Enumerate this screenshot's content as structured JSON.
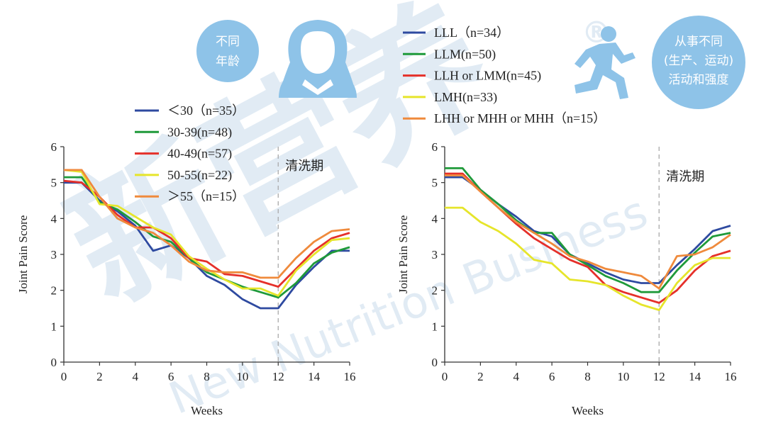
{
  "badges": {
    "age_line1": "不同",
    "age_line2": "年龄",
    "activity_line1": "从事不同",
    "activity_line2": "(生产、运动)",
    "activity_line3": "活动和强度"
  },
  "watermark": {
    "cn": "新营养",
    "en": "New Nutrition Business",
    "mark": "®"
  },
  "chart_data": [
    {
      "type": "line",
      "title": "",
      "xlabel": "Weeks",
      "ylabel": "Joint Pain Score",
      "xlim": [
        0,
        16
      ],
      "ylim": [
        0,
        6
      ],
      "xticks": [
        0,
        2,
        4,
        6,
        8,
        10,
        12,
        14,
        16
      ],
      "yticks": [
        0,
        1,
        2,
        3,
        4,
        5,
        6
      ],
      "annotation": {
        "text": "清洗期",
        "x": 12
      },
      "legend_position": "top-center",
      "x": [
        0,
        1,
        2,
        3,
        4,
        5,
        6,
        7,
        8,
        9,
        10,
        11,
        12,
        13,
        14,
        15,
        16
      ],
      "series": [
        {
          "name": "＜30（n=35）",
          "color": "#2e4aa0",
          "values": [
            5.0,
            5.0,
            4.5,
            4.2,
            3.8,
            3.1,
            3.25,
            2.9,
            2.4,
            2.15,
            1.75,
            1.5,
            1.5,
            2.15,
            2.65,
            3.1,
            3.1
          ]
        },
        {
          "name": "30-39(n=48)",
          "color": "#1f9a3a",
          "values": [
            5.15,
            5.15,
            4.45,
            4.25,
            3.9,
            3.5,
            3.35,
            2.9,
            2.5,
            2.3,
            2.1,
            1.95,
            1.8,
            2.2,
            2.75,
            3.05,
            3.2
          ]
        },
        {
          "name": "40-49(n=57)",
          "color": "#e5302a",
          "values": [
            5.05,
            5.0,
            4.6,
            4.1,
            3.75,
            3.75,
            3.45,
            2.9,
            2.8,
            2.45,
            2.4,
            2.25,
            2.1,
            2.6,
            3.1,
            3.45,
            3.6
          ]
        },
        {
          "name": "50-55(n=22)",
          "color": "#e6e52b",
          "values": [
            5.35,
            5.3,
            4.4,
            4.35,
            4.05,
            3.75,
            3.55,
            2.95,
            2.6,
            2.3,
            2.05,
            2.05,
            1.85,
            2.55,
            3.0,
            3.4,
            3.45
          ]
        },
        {
          "name": "＞55（n=15）",
          "color": "#ef8a3c",
          "values": [
            5.35,
            5.35,
            4.6,
            4.0,
            3.75,
            3.6,
            3.25,
            2.8,
            2.55,
            2.5,
            2.5,
            2.35,
            2.35,
            2.9,
            3.35,
            3.65,
            3.7
          ]
        }
      ]
    },
    {
      "type": "line",
      "title": "",
      "xlabel": "Weeks",
      "ylabel": "Joint Pain Score",
      "xlim": [
        0,
        16
      ],
      "ylim": [
        0,
        6
      ],
      "xticks": [
        0,
        2,
        4,
        6,
        8,
        10,
        12,
        14,
        16
      ],
      "yticks": [
        0,
        1,
        2,
        3,
        4,
        5,
        6
      ],
      "annotation": {
        "text": "清洗期",
        "x": 12
      },
      "legend_position": "top-right",
      "x": [
        0,
        1,
        2,
        3,
        4,
        5,
        6,
        7,
        8,
        9,
        10,
        11,
        12,
        13,
        14,
        15,
        16
      ],
      "series": [
        {
          "name": "LLL（n=34）",
          "color": "#2e4aa0",
          "values": [
            5.15,
            5.15,
            4.8,
            4.4,
            4.05,
            3.65,
            3.5,
            3.0,
            2.75,
            2.5,
            2.3,
            2.2,
            2.2,
            2.7,
            3.15,
            3.65,
            3.8
          ]
        },
        {
          "name": "LLM(n=50)",
          "color": "#1f9a3a",
          "values": [
            5.4,
            5.4,
            4.8,
            4.4,
            3.95,
            3.6,
            3.6,
            3.0,
            2.7,
            2.4,
            2.2,
            1.95,
            1.95,
            2.55,
            3.05,
            3.5,
            3.6
          ]
        },
        {
          "name": "LLH or LMM(n=45)",
          "color": "#e5302a",
          "values": [
            5.25,
            5.25,
            4.75,
            4.3,
            3.85,
            3.45,
            3.15,
            2.85,
            2.65,
            2.15,
            1.95,
            1.8,
            1.65,
            2.0,
            2.55,
            2.95,
            3.1
          ]
        },
        {
          "name": "LMH(n=33)",
          "color": "#e6e52b",
          "values": [
            4.3,
            4.3,
            3.9,
            3.65,
            3.3,
            2.85,
            2.75,
            2.3,
            2.25,
            2.15,
            1.85,
            1.6,
            1.45,
            2.2,
            2.7,
            2.9,
            2.9
          ]
        },
        {
          "name": "LHH or MHH or MHH（n=15）",
          "color": "#ef8a3c",
          "values": [
            5.2,
            5.2,
            4.75,
            4.3,
            3.9,
            3.6,
            3.3,
            2.95,
            2.8,
            2.6,
            2.5,
            2.4,
            2.05,
            2.95,
            3.0,
            3.2,
            3.55
          ]
        }
      ]
    }
  ]
}
